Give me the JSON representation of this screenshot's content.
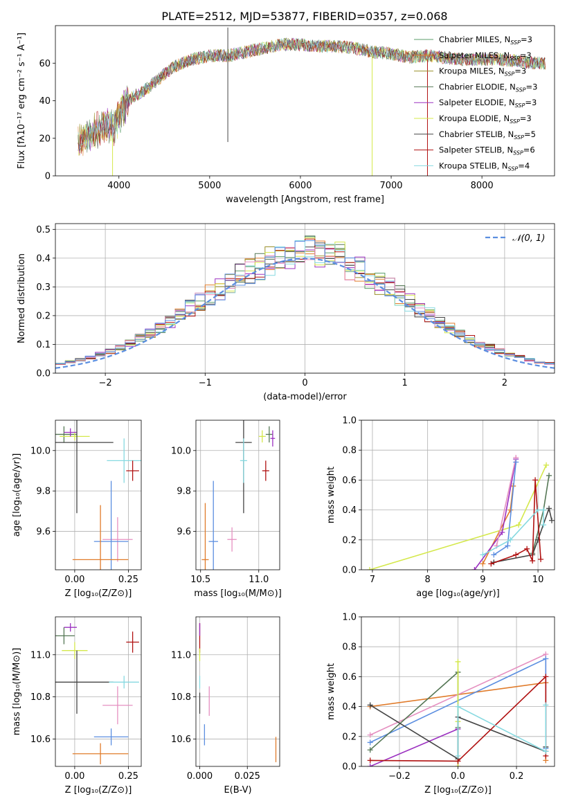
{
  "figure_title": "PLATE=2512, MJD=53877, FIBERID=0357, z=0.068",
  "colors": {
    "Chabrier MILES": "#5fa55a",
    "Salpeter MILES": "#e07b2a",
    "Kroupa MILES": "#e07b2a",
    "Chabrier ELODIE": "#557755",
    "Salpeter ELODIE": "#9b30c0",
    "Kroupa ELODIE": "#d4e84a",
    "Chabrier STELIB": "#444444",
    "Salpeter STELIB": "#b01010",
    "Kroupa STELIB": "#86d9e0",
    "Kroupa MILES bar": "#e58fc0",
    "Chabrier MILES bar": "#5b8ee0",
    "normal": "#5b8ee0"
  },
  "chart_data": [
    {
      "id": "spectrum",
      "type": "line",
      "xlabel": "wavelength [Angstrom, rest frame]",
      "ylabel": "Flux [f$_\\lambda$10$^{-17}$ erg cm$^{-2}$ s$^{-1}$ A$^{-1}$]",
      "ylabel_display": "Flux [fλ10⁻¹⁷ erg cm⁻² s⁻¹ A⁻¹]",
      "xlim": [
        3300,
        8800
      ],
      "ylim": [
        0,
        80
      ],
      "xticks": [
        4000,
        5000,
        6000,
        7000,
        8000
      ],
      "yticks": [
        0,
        20,
        40,
        60
      ],
      "grid": false,
      "legend_position": "top-right",
      "continuum": {
        "x": [
          3550,
          3700,
          3850,
          3950,
          4050,
          4150,
          4300,
          4450,
          4600,
          4800,
          5000,
          5200,
          5400,
          5600,
          5800,
          6000,
          6200,
          6400,
          6600,
          6800,
          7000,
          7200,
          7400,
          7600,
          7800,
          8000,
          8200,
          8400,
          8600,
          8700
        ],
        "y": [
          18,
          22,
          28,
          26,
          36,
          42,
          46,
          52,
          58,
          62,
          64,
          64,
          66,
          68,
          70,
          70,
          69,
          69,
          68,
          66,
          65,
          63,
          64,
          63,
          62,
          62,
          62,
          61,
          60,
          60
        ]
      },
      "series": [
        {
          "name": "Chabrier MILES, N$_{SSP}$=3",
          "label_main": "Chabrier MILES, N",
          "label_sub": "SSP",
          "label_tail": "=3"
        },
        {
          "name": "Salpeter MILES, N$_{SSP}$=3",
          "label_main": "Salpeter MILES, N",
          "label_sub": "SSP",
          "label_tail": "=3"
        },
        {
          "name": "Kroupa MILES, N$_{SSP}$=3",
          "label_main": "Kroupa MILES, N",
          "label_sub": "SSP",
          "label_tail": "=3"
        },
        {
          "name": "Chabrier ELODIE, N$_{SSP}$=3",
          "label_main": "Chabrier ELODIE, N",
          "label_sub": "SSP",
          "label_tail": "=3"
        },
        {
          "name": "Salpeter ELODIE, N$_{SSP}$=3",
          "label_main": "Salpeter ELODIE, N",
          "label_sub": "SSP",
          "label_tail": "=3"
        },
        {
          "name": "Kroupa ELODIE, N$_{SSP}$=3",
          "label_main": "Kroupa ELODIE, N",
          "label_sub": "SSP",
          "label_tail": "=3"
        },
        {
          "name": "Chabrier STELIB, N$_{SSP}$=5",
          "label_main": "Chabrier STELIB, N",
          "label_sub": "SSP",
          "label_tail": "=5"
        },
        {
          "name": "Salpeter STELIB, N$_{SSP}$=6",
          "label_main": "Salpeter STELIB, N",
          "label_sub": "SSP",
          "label_tail": "=6"
        },
        {
          "name": "Kroupa STELIB, N$_{SSP}$=4",
          "label_main": "Kroupa STELIB, N",
          "label_sub": "SSP",
          "label_tail": "=4"
        }
      ],
      "spikes": [
        {
          "x": 5200,
          "y_low": 18,
          "y_high": 79
        },
        {
          "x": 3930,
          "y_low": 0,
          "y_high": 20
        },
        {
          "x": 6790,
          "y_low": 0,
          "y_high": 65
        },
        {
          "x": 7400,
          "y_low": 0,
          "y_high": 62
        }
      ]
    },
    {
      "id": "residual_hist",
      "type": "histogram",
      "xlabel": "(data-model)/error",
      "ylabel": "Normed distribution",
      "xlim": [
        -2.5,
        2.5
      ],
      "ylim": [
        0,
        0.52
      ],
      "xticks": [
        -2,
        -1,
        0,
        1,
        2
      ],
      "yticks": [
        0.0,
        0.1,
        0.2,
        0.3,
        0.4,
        0.5
      ],
      "grid": true,
      "legend_position": "top-right",
      "legend_label": "𝒩(0, 1)",
      "bin_width": 0.1,
      "normal_curve": {
        "mean": 0,
        "sigma": 1
      }
    },
    {
      "id": "age_vs_Z",
      "type": "errorbar",
      "xlabel": "Z [log$_{10}$(Z/Z$_\\odot$)]",
      "xlabel_display": "Z [log₁₀(Z/Z⊙)]",
      "ylabel": "age  [log$_{10}$(age/yr)]",
      "ylabel_display": "age  [log₁₀(age/yr)]",
      "xlim": [
        -0.09,
        0.31
      ],
      "ylim": [
        9.41,
        10.15
      ],
      "xticks": [
        0.0,
        0.25
      ],
      "yticks": [
        9.6,
        9.8,
        10.0
      ],
      "grid": true,
      "points": [
        {
          "series": "Chabrier ELODIE",
          "x": -0.05,
          "y": 10.08,
          "xerr": 0.06,
          "yerr": 0.04
        },
        {
          "series": "Kroupa ELODIE",
          "x": 0.0,
          "y": 10.07,
          "xerr": 0.07,
          "yerr": 0.02
        },
        {
          "series": "Salpeter ELODIE",
          "x": -0.02,
          "y": 10.09,
          "xerr": 0.03,
          "yerr": 0.02
        },
        {
          "series": "Chabrier STELIB",
          "x": 0.01,
          "y": 10.04,
          "xerr": 0.17,
          "yerr": 0.35
        },
        {
          "series": "Kroupa STELIB",
          "x": 0.23,
          "y": 9.95,
          "xerr": 0.08,
          "yerr": 0.11
        },
        {
          "series": "Salpeter STELIB",
          "x": 0.27,
          "y": 9.9,
          "xerr": 0.03,
          "yerr": 0.05
        },
        {
          "series": "Kroupa MILES bar",
          "x": 0.2,
          "y": 9.56,
          "xerr": 0.07,
          "yerr": 0.11
        },
        {
          "series": "Chabrier MILES bar",
          "x": 0.17,
          "y": 9.55,
          "xerr": 0.08,
          "yerr": 0.3
        },
        {
          "series": "Salpeter MILES",
          "x": 0.12,
          "y": 9.46,
          "xerr": 0.13,
          "yerr": 0.27
        }
      ]
    },
    {
      "id": "age_vs_mass",
      "type": "errorbar",
      "xlabel": "mass [log$_{10}$(M/M$_\\odot$)]",
      "xlabel_display": "mass [log₁₀(M/M⊙)]",
      "ylabel": "",
      "xlim": [
        10.46,
        11.18
      ],
      "ylim": [
        9.41,
        10.15
      ],
      "xticks": [
        10.5,
        11.0
      ],
      "yticks": [
        9.6,
        9.8,
        10.0
      ],
      "grid": true,
      "points": [
        {
          "series": "Chabrier ELODIE",
          "x": 11.09,
          "y": 10.08,
          "xerr": 0.03,
          "yerr": 0.04
        },
        {
          "series": "Kroupa ELODIE",
          "x": 11.03,
          "y": 10.07,
          "xerr": 0.03,
          "yerr": 0.03
        },
        {
          "series": "Salpeter ELODIE",
          "x": 11.12,
          "y": 10.06,
          "xerr": 0.02,
          "yerr": 0.04
        },
        {
          "series": "Chabrier STELIB",
          "x": 10.87,
          "y": 10.04,
          "xerr": 0.07,
          "yerr": 0.35
        },
        {
          "series": "Kroupa STELIB",
          "x": 10.87,
          "y": 9.95,
          "xerr": 0.03,
          "yerr": 0.11
        },
        {
          "series": "Salpeter STELIB",
          "x": 11.06,
          "y": 9.9,
          "xerr": 0.03,
          "yerr": 0.05
        },
        {
          "series": "Kroupa MILES bar",
          "x": 10.77,
          "y": 9.56,
          "xerr": 0.04,
          "yerr": 0.06
        },
        {
          "series": "Chabrier MILES bar",
          "x": 10.61,
          "y": 9.55,
          "xerr": 0.04,
          "yerr": 0.3
        },
        {
          "series": "Salpeter MILES",
          "x": 10.54,
          "y": 9.46,
          "xerr": 0.03,
          "yerr": 0.28
        }
      ]
    },
    {
      "id": "massweight_vs_age",
      "type": "line",
      "xlabel": "age  [log$_{10}$(age/yr)]",
      "xlabel_display": "age  [log₁₀(age/yr)]",
      "ylabel": "mass weight",
      "xlim": [
        6.8,
        10.3
      ],
      "ylim": [
        0,
        1.0
      ],
      "xticks": [
        7,
        8,
        9,
        10
      ],
      "yticks": [
        0.0,
        0.2,
        0.4,
        0.6,
        0.8,
        1.0
      ],
      "grid": true,
      "series": [
        {
          "name": "Kroupa ELODIE",
          "x": [
            6.95,
            9.65,
            10.15
          ],
          "y": [
            0.0,
            0.3,
            0.7
          ]
        },
        {
          "name": "Salpeter MILES",
          "x": [
            9.0,
            9.5,
            9.55
          ],
          "y": [
            0.04,
            0.4,
            0.56
          ]
        },
        {
          "name": "Salpeter ELODIE",
          "x": [
            8.85,
            9.35,
            9.6
          ],
          "y": [
            0.0,
            0.25,
            0.74
          ]
        },
        {
          "name": "Kroupa MILES bar",
          "x": [
            9.25,
            9.6
          ],
          "y": [
            0.16,
            0.75
          ]
        },
        {
          "name": "Chabrier MILES bar",
          "x": [
            9.2,
            9.45,
            9.6
          ],
          "y": [
            0.1,
            0.16,
            0.72
          ]
        },
        {
          "name": "Chabrier ELODIE",
          "x": [
            9.9,
            10.1,
            10.2
          ],
          "y": [
            0.11,
            0.4,
            0.63
          ]
        },
        {
          "name": "Chabrier STELIB",
          "x": [
            9.2,
            9.9,
            10.0,
            10.2,
            10.25
          ],
          "y": [
            0.05,
            0.1,
            0.2,
            0.41,
            0.33
          ]
        },
        {
          "name": "Salpeter STELIB",
          "x": [
            9.15,
            9.6,
            9.8,
            9.9,
            9.95,
            10.05
          ],
          "y": [
            0.04,
            0.1,
            0.14,
            0.06,
            0.6,
            0.07
          ]
        },
        {
          "name": "Kroupa STELIB",
          "x": [
            9.0,
            9.5,
            10.0,
            10.1,
            10.1
          ],
          "y": [
            0.1,
            0.2,
            0.4,
            0.4,
            0.3
          ]
        }
      ]
    },
    {
      "id": "mass_vs_Z",
      "type": "errorbar",
      "xlabel": "Z [log$_{10}$(Z/Z$_\\odot$)]",
      "xlabel_display": "Z [log₁₀(Z/Z⊙)]",
      "ylabel": "mass [log$_{10}$(M/M$_\\odot$)]",
      "ylabel_display": "mass [log₁₀(M/M⊙)]",
      "xlim": [
        -0.09,
        0.31
      ],
      "ylim": [
        10.47,
        11.18
      ],
      "xticks": [
        0.0,
        0.25
      ],
      "yticks": [
        10.6,
        10.8,
        11.0
      ],
      "grid": true,
      "points": [
        {
          "series": "Salpeter ELODIE",
          "x": -0.02,
          "y": 11.13,
          "xerr": 0.03,
          "yerr": 0.02
        },
        {
          "series": "Chabrier ELODIE",
          "x": -0.05,
          "y": 11.09,
          "xerr": 0.05,
          "yerr": 0.04
        },
        {
          "series": "Salpeter STELIB",
          "x": 0.27,
          "y": 11.06,
          "xerr": 0.03,
          "yerr": 0.05
        },
        {
          "series": "Kroupa ELODIE",
          "x": 0.0,
          "y": 11.02,
          "xerr": 0.06,
          "yerr": 0.04
        },
        {
          "series": "Chabrier STELIB",
          "x": 0.01,
          "y": 10.87,
          "xerr": 0.17,
          "yerr": 0.15
        },
        {
          "series": "Kroupa STELIB",
          "x": 0.23,
          "y": 10.87,
          "xerr": 0.07,
          "yerr": 0.03
        },
        {
          "series": "Kroupa MILES bar",
          "x": 0.2,
          "y": 10.76,
          "xerr": 0.07,
          "yerr": 0.09
        },
        {
          "series": "Chabrier MILES bar",
          "x": 0.17,
          "y": 10.61,
          "xerr": 0.08,
          "yerr": 0.04
        },
        {
          "series": "Salpeter MILES",
          "x": 0.12,
          "y": 10.53,
          "xerr": 0.13,
          "yerr": 0.05
        }
      ]
    },
    {
      "id": "mass_vs_EBV",
      "type": "errorbar",
      "xlabel": "E(B-V)",
      "ylabel": "",
      "xlim": [
        -0.002,
        0.042
      ],
      "ylim": [
        10.47,
        11.18
      ],
      "xticks": [
        0.0,
        0.025
      ],
      "yticks": [
        10.6,
        10.8,
        11.0
      ],
      "grid": true,
      "points": [
        {
          "series": "Salpeter STELIB",
          "x": 0.0,
          "y": 11.08,
          "xerr": 0.0,
          "yerr": 0.07
        },
        {
          "series": "Salpeter ELODIE",
          "x": 0.0,
          "y": 11.12,
          "xerr": 0.0,
          "yerr": 0.03
        },
        {
          "series": "Kroupa ELODIE",
          "x": 0.0,
          "y": 11.0,
          "xerr": 0.0,
          "yerr": 0.03
        },
        {
          "series": "Kroupa STELIB",
          "x": 0.0,
          "y": 10.87,
          "xerr": 0.0,
          "yerr": 0.03
        },
        {
          "series": "Chabrier STELIB",
          "x": 0.0,
          "y": 10.77,
          "xerr": 0.0,
          "yerr": 0.05
        },
        {
          "series": "Kroupa MILES bar",
          "x": 0.005,
          "y": 10.78,
          "xerr": 0.0,
          "yerr": 0.07
        },
        {
          "series": "Chabrier MILES bar",
          "x": 0.0025,
          "y": 10.62,
          "xerr": 0.0,
          "yerr": 0.05
        },
        {
          "series": "Salpeter MILES",
          "x": 0.04,
          "y": 10.55,
          "xerr": 0.0,
          "yerr": 0.06
        }
      ]
    },
    {
      "id": "massweight_vs_Z",
      "type": "line",
      "xlabel": "Z [log$_{10}$(Z/Z$_\\odot$)]",
      "xlabel_display": "Z [log₁₀(Z/Z⊙)]",
      "ylabel": "mass weight",
      "xlim": [
        -0.33,
        0.33
      ],
      "ylim": [
        0,
        1.0
      ],
      "xticks": [
        -0.2,
        0.0,
        0.2
      ],
      "yticks": [
        0.0,
        0.2,
        0.4,
        0.6,
        0.8,
        1.0
      ],
      "grid": true,
      "series": [
        {
          "name": "Salpeter MILES",
          "x": [
            -0.3,
            0.3,
            0.3
          ],
          "y": [
            0.4,
            0.56,
            0.04
          ]
        },
        {
          "name": "Kroupa MILES bar",
          "x": [
            -0.3,
            0.3,
            0.3
          ],
          "y": [
            0.21,
            0.75,
            0.1
          ]
        },
        {
          "name": "Chabrier MILES bar",
          "x": [
            -0.3,
            0.3,
            0.3
          ],
          "y": [
            0.16,
            0.72,
            0.12
          ]
        },
        {
          "name": "Chabrier ELODIE",
          "x": [
            -0.3,
            0.0,
            0.0
          ],
          "y": [
            0.11,
            0.63,
            0.26
          ]
        },
        {
          "name": "Salpeter ELODIE",
          "x": [
            -0.3,
            0.0,
            0.0
          ],
          "y": [
            0.0,
            0.25,
            0.0
          ]
        },
        {
          "name": "Kroupa ELODIE",
          "x": [
            0.0,
            0.0,
            0.0
          ],
          "y": [
            0.7,
            0.3,
            0.0
          ]
        },
        {
          "name": "Chabrier STELIB",
          "x": [
            -0.3,
            0.0,
            0.0,
            0.3,
            0.3
          ],
          "y": [
            0.41,
            0.05,
            0.33,
            0.1,
            0.13
          ]
        },
        {
          "name": "Salpeter STELIB",
          "x": [
            -0.3,
            0.0,
            0.3,
            0.3
          ],
          "y": [
            0.04,
            0.035,
            0.6,
            0.07
          ]
        },
        {
          "name": "Kroupa STELIB",
          "x": [
            0.0,
            0.0,
            0.3,
            0.3
          ],
          "y": [
            0.07,
            0.4,
            0.1,
            0.41
          ]
        }
      ]
    }
  ]
}
